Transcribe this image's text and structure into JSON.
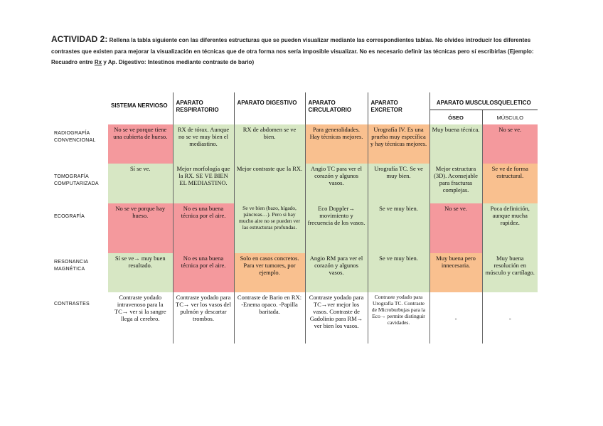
{
  "instructions": {
    "title": "ACTIVIDAD 2:",
    "text_before_rx": " Rellena la tabla siguiente con las diferentes estructuras que se pueden visualizar mediante las correspondientes tablas. No olvides introducir los diferentes contrastes que existen para mejorar la visualización en técnicas que de otra forma nos sería imposible visualizar. No es necesario definir las técnicas pero sí escribirlas (Ejemplo: Recuadro entre ",
    "rx": "Rx",
    "text_after_rx": " y Ap. Digestivo: Intestinos mediante contraste de bario)"
  },
  "table": {
    "headers": {
      "sistema_nervioso": "SISTEMA NERVIOSO",
      "aparato_respiratorio": "APARATO RESPIRATORIO",
      "aparato_digestivo": "APARATO DIGESTIVO",
      "aparato_circulatorio": "APARATO CIRCULATORIO",
      "aparato_excretor": "APARATO EXCRETOR",
      "aparato_musculoesqueletico": "APARATO MUSCULOSQUELETICO",
      "oseo": "ÓSEO",
      "musculo": "MÚSCULO"
    },
    "rows": [
      {
        "label": "RADIOGRAFÍA CONVENCIONAL",
        "cells": [
          "No se ve porque tiene una cubierta de hueso.",
          "RX de tórax. Aunque no se ve muy bien el mediastino.",
          "RX de abdomen se ve bien.",
          "Para generalidades. Hay técnicas mejores.",
          "Urografía IV. Es una prueba muy específica y hay técnicas mejores.",
          "Muy buena técnica.",
          "No se ve."
        ]
      },
      {
        "label": "TOMOGRAFÍA COMPUTARIZADA",
        "cells": [
          "Sí se ve.",
          "Mejor morfología que la RX. SE VE BIEN EL MEDIASTINO.",
          "Mejor contraste que la RX.",
          "Angio TC para ver el corazón y algunos vasos.",
          "Urografía TC. Se ve muy bien.",
          "Mejor estructura (3D). Aconsejable para fracturas complejas.",
          "Se ve de forma estructural."
        ]
      },
      {
        "label": "ECOGRAFÍA",
        "cells": [
          "No se ve porque hay hueso.",
          "No es una buena técnica por el aire.",
          "Se ve bien (bazo, hígado, páncreas…). Pero si hay mucho aire no se pueden ver las estructuras profundas.",
          "Eco Doppler→ movimiento y frecuencia de los vasos.",
          "Se ve muy bien.",
          "No se ve.",
          "Poca definición, aunque mucha rapidez."
        ]
      },
      {
        "label": "RESONANCIA MAGNÉTICA",
        "cells": [
          "Sí se ve→ muy buen resultado.",
          "No es una buena técnica por el aire.",
          "Solo en casos concretos. Para ver tumores, por ejemplo.",
          "Angio RM para ver el corazón y algunos vasos.",
          "Se ve muy bien.",
          "Muy buena pero innecesaria.",
          "Muy buena resolución en músculo y cartílago."
        ]
      },
      {
        "label": "CONTRASTES",
        "cells": [
          "Contraste yodado intravenoso para la TC→ ver si la sangre llega al cerebro.",
          "Contraste yodado para TC→ ver los vasos del pulmón y descartar trombos.",
          "Contraste de Bario en RX: -Enema opaco. -Papilla baritada.",
          "Contraste yodado para TC→ver mejor los vasos. Contraste de Gadolinio para RM→ ver bien los vasos.",
          "Contraste yodado para Urografía TC. Contraste de Microburbujas para la Eco→ permite distinguir cavidades.",
          "-",
          "-"
        ]
      }
    ]
  },
  "colors": {
    "red": "#f4999d",
    "green": "#d7e7c4",
    "orange": "#f9c08f"
  }
}
